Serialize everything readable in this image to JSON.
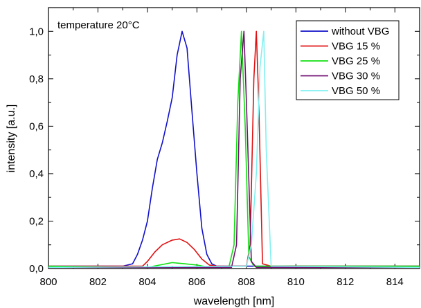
{
  "chart_data": {
    "type": "line",
    "xlabel": "wavelength [nm]",
    "ylabel": "intensity [a.u.]",
    "xlim": [
      800,
      815
    ],
    "ylim": [
      0,
      1.1
    ],
    "xticks": [
      800,
      802,
      804,
      806,
      808,
      810,
      812,
      814
    ],
    "xtick_labels": [
      "800",
      "802",
      "804",
      "806",
      "808",
      "810",
      "812",
      "814"
    ],
    "yticks": [
      0,
      0.2,
      0.4,
      0.6,
      0.8,
      1.0
    ],
    "ytick_labels": [
      "0,0",
      "0,2",
      "0,4",
      "0,6",
      "0,8",
      "1,0"
    ],
    "grid": false,
    "legend_position": "top-right",
    "annotation": "temperature 20°C",
    "series": [
      {
        "name": "without VBG",
        "color": "#1010c8",
        "x": [
          800,
          803,
          803.4,
          803.6,
          803.8,
          804.0,
          804.2,
          804.4,
          804.6,
          804.8,
          805.0,
          805.2,
          805.4,
          805.6,
          805.8,
          806.0,
          806.2,
          806.4,
          806.6,
          806.8,
          807.0,
          815
        ],
        "y": [
          0.01,
          0.01,
          0.02,
          0.06,
          0.12,
          0.2,
          0.34,
          0.46,
          0.53,
          0.62,
          0.72,
          0.9,
          1.0,
          0.93,
          0.66,
          0.4,
          0.17,
          0.06,
          0.02,
          0.01,
          0.01,
          0.01
        ]
      },
      {
        "name": "VBG 15 %",
        "color": "#e01010",
        "x": [
          800,
          803.8,
          804.0,
          804.3,
          804.6,
          805.0,
          805.3,
          805.6,
          805.9,
          806.2,
          806.5,
          806.8,
          807.5,
          808.0,
          808.15,
          808.3,
          808.4,
          808.5,
          808.65,
          809.0,
          815
        ],
        "y": [
          0.01,
          0.01,
          0.03,
          0.07,
          0.1,
          0.12,
          0.125,
          0.11,
          0.08,
          0.04,
          0.015,
          0.01,
          0.01,
          0.01,
          0.1,
          0.8,
          1.0,
          0.7,
          0.02,
          0.01,
          0.01
        ]
      },
      {
        "name": "VBG 25 %",
        "color": "#10e010",
        "x": [
          800,
          804.0,
          804.5,
          805.0,
          805.5,
          806.0,
          806.5,
          807.3,
          807.5,
          807.65,
          807.8,
          807.95,
          808.1,
          808.3,
          815
        ],
        "y": [
          0.01,
          0.005,
          0.015,
          0.025,
          0.02,
          0.015,
          0.005,
          0.01,
          0.1,
          0.7,
          1.0,
          0.6,
          0.05,
          0.01,
          0.01
        ]
      },
      {
        "name": "VBG 30 %",
        "color": "#701070",
        "x": [
          800,
          807.4,
          807.6,
          807.75,
          807.9,
          808.0,
          808.2,
          808.4,
          815
        ],
        "y": [
          0.005,
          0.005,
          0.1,
          0.8,
          1.0,
          0.7,
          0.03,
          0.005,
          0.005
        ]
      },
      {
        "name": "VBG 50 %",
        "color": "#80f0f0",
        "x": [
          800,
          808.0,
          808.2,
          808.4,
          808.55,
          808.7,
          808.8,
          809.0,
          815
        ],
        "y": [
          0.005,
          0.01,
          0.1,
          0.4,
          0.85,
          1.0,
          0.5,
          0.01,
          0.005
        ]
      }
    ]
  }
}
